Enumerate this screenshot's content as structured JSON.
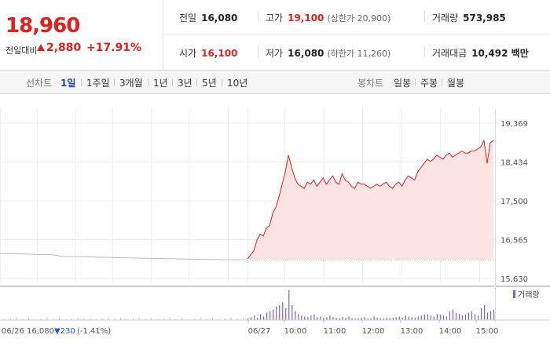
{
  "summary": {
    "price": "18,960",
    "change_label": "전일대비",
    "change_value": "2,880",
    "change_pct": "+17.91%"
  },
  "info": {
    "prev_close_label": "전일",
    "prev_close": "16,080",
    "high_label": "고가",
    "high": "19,100",
    "upper_limit": "(상한가 20,900)",
    "volume_label": "거래량",
    "volume": "573,985",
    "open_label": "시가",
    "open": "16,100",
    "low_label": "저가",
    "low": "16,080",
    "lower_limit": "(하한가 11,260)",
    "value_label": "거래대금",
    "value": "10,492 백만"
  },
  "tabs": {
    "line_label": "선차트",
    "line_items": [
      "1일",
      "1주일",
      "3개월",
      "1년",
      "3년",
      "5년",
      "10년"
    ],
    "line_active": "1일",
    "candle_label": "봉차트",
    "candle_items": [
      "일봉",
      "주봉",
      "월봉"
    ]
  },
  "colors": {
    "up": "#e0201f",
    "active_tab": "#1f3fb6",
    "volume_bar": "#7b63b8"
  },
  "chart_data": {
    "type": "line",
    "ylim": [
      15630,
      19369
    ],
    "y_ticks": [
      "19,369",
      "18,434",
      "17,500",
      "16,565",
      "15,630"
    ],
    "x_ticks": [
      "06/27",
      "10:00",
      "11:00",
      "12:00",
      "13:00",
      "14:00",
      "15:00"
    ],
    "prev_close_line": 16080,
    "prev_day": {
      "label": "06/26 16,080 ▼230 (-1.41%)",
      "date": "06/26",
      "close": "16,080",
      "change": "▼230",
      "change_pct": "(-1.41%)",
      "values": [
        16230,
        16225,
        16220,
        16215,
        16205,
        16200,
        16150,
        16160,
        16150,
        16145,
        16140,
        16130,
        16125,
        16120,
        16115,
        16110,
        16105,
        16100,
        16095,
        16090,
        16085,
        16080,
        16080,
        16080
      ]
    },
    "series": [
      {
        "values": [
          16100,
          16200,
          16300,
          16550,
          16700,
          16650,
          16850,
          16900,
          17200,
          17350,
          17600,
          17900,
          18200,
          18600,
          18300,
          18050,
          17900,
          17850,
          17800,
          17950,
          17900,
          18000,
          17850,
          17950,
          18050,
          17900,
          18000,
          18100,
          17950,
          17900,
          18150,
          18000,
          17950,
          17850,
          17800,
          17950,
          17900,
          17900,
          17850,
          17800,
          17850,
          17900,
          17850,
          17900,
          17950,
          17850,
          17800,
          17900,
          17950,
          17850,
          18000,
          18100,
          18050,
          18000,
          18200,
          18300,
          18400,
          18500,
          18450,
          18500,
          18600,
          18550,
          18500,
          18600,
          18650,
          18550,
          18600,
          18650,
          18700,
          18650,
          18650,
          18700,
          18700,
          18750,
          18800,
          18950,
          18400,
          18900,
          18950
        ]
      }
    ],
    "volume_legend": "거래량",
    "volume": [
      0.05,
      0.1,
      0.15,
      0.08,
      0.2,
      0.12,
      0.25,
      0.3,
      0.35,
      0.45,
      0.5,
      0.6,
      0.4,
      1.0,
      0.5,
      0.3,
      0.2,
      0.15,
      0.12,
      0.1,
      0.15,
      0.18,
      0.1,
      0.12,
      0.08,
      0.1,
      0.15,
      0.1,
      0.08,
      0.06,
      0.1,
      0.08,
      0.12,
      0.07,
      0.05,
      0.06,
      0.08,
      0.1,
      0.05,
      0.06,
      0.12,
      0.08,
      0.06,
      0.05,
      0.07,
      0.06,
      0.08,
      0.1,
      0.12,
      0.08,
      0.15,
      0.12,
      0.1,
      0.08,
      0.12,
      0.15,
      0.18,
      0.2,
      0.15,
      0.12,
      0.2,
      0.18,
      0.15,
      0.12,
      0.3,
      0.35,
      0.25,
      0.2,
      0.15,
      0.18,
      0.25,
      0.3,
      0.2,
      0.15,
      0.4,
      0.5,
      0.25,
      0.3,
      0.35
    ]
  }
}
